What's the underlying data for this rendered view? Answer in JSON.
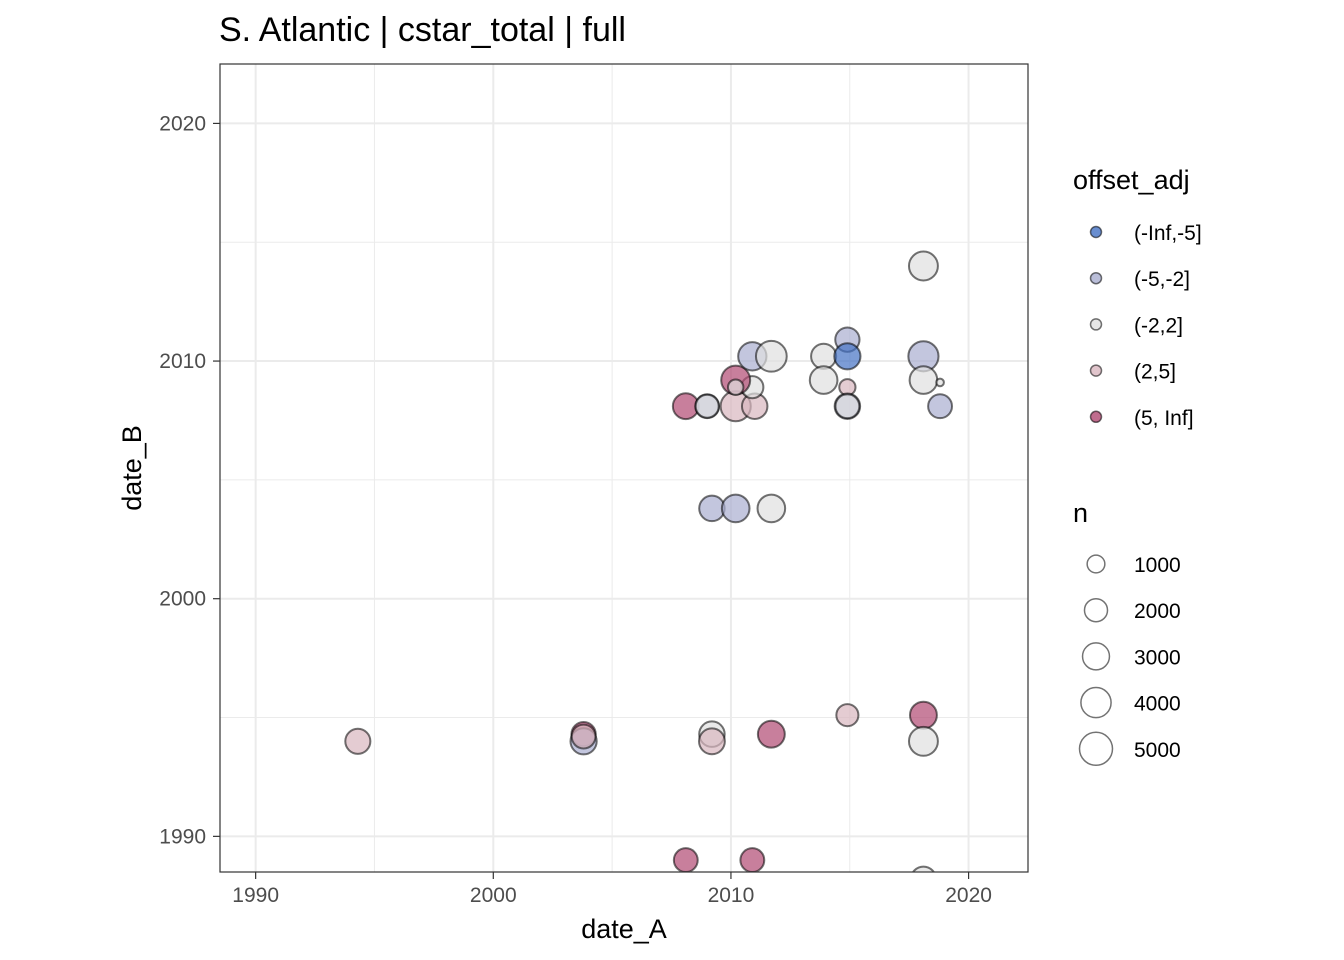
{
  "chart_data": {
    "type": "scatter",
    "title": "S. Atlantic | cstar_total | full",
    "xlabel": "date_A",
    "ylabel": "date_B",
    "xlim": [
      1988.5,
      2022.5
    ],
    "ylim": [
      1988.5,
      2022.5
    ],
    "x_ticks": [
      1990,
      2000,
      2010,
      2020
    ],
    "y_ticks": [
      1990,
      2000,
      2010,
      2020
    ],
    "grid": true,
    "legend_placement": "right",
    "color_legend": {
      "title": "offset_adj",
      "entries": [
        {
          "label": "(-Inf,-5]",
          "color": "#4472c4"
        },
        {
          "label": "(-5,-2]",
          "color": "#a9aed0"
        },
        {
          "label": "(-2,2]",
          "color": "#e0e0e0"
        },
        {
          "label": "(2,5]",
          "color": "#d9b6bf"
        },
        {
          "label": "(5, Inf]",
          "color": "#b04872"
        }
      ]
    },
    "size_legend": {
      "title": "n",
      "entries": [
        {
          "label": "1000",
          "value": 1000
        },
        {
          "label": "2000",
          "value": 2000
        },
        {
          "label": "3000",
          "value": 3000
        },
        {
          "label": "4000",
          "value": 4000
        },
        {
          "label": "5000",
          "value": 5000
        }
      ]
    },
    "points": [
      {
        "x": 1994.3,
        "y": 1994.0,
        "n": 2500,
        "group": "(2,5]"
      },
      {
        "x": 2003.8,
        "y": 1994.3,
        "n": 2300,
        "group": "(5, Inf]"
      },
      {
        "x": 2003.8,
        "y": 1994.0,
        "n": 2800,
        "group": "(-5,-2]"
      },
      {
        "x": 2003.8,
        "y": 1994.2,
        "n": 2200,
        "group": "(2,5]"
      },
      {
        "x": 2009.2,
        "y": 1994.3,
        "n": 2600,
        "group": "(-2,2]"
      },
      {
        "x": 2009.2,
        "y": 1994.0,
        "n": 2700,
        "group": "(2,5]"
      },
      {
        "x": 2011.7,
        "y": 1994.3,
        "n": 3000,
        "group": "(5, Inf]"
      },
      {
        "x": 2014.9,
        "y": 1995.1,
        "n": 1800,
        "group": "(2,5]"
      },
      {
        "x": 2018.1,
        "y": 1995.1,
        "n": 3000,
        "group": "(5, Inf]"
      },
      {
        "x": 2018.1,
        "y": 1994.0,
        "n": 3600,
        "group": "(-2,2]"
      },
      {
        "x": 2008.1,
        "y": 1989.0,
        "n": 2200,
        "group": "(5, Inf]"
      },
      {
        "x": 2010.9,
        "y": 1989.0,
        "n": 2200,
        "group": "(5, Inf]"
      },
      {
        "x": 2018.1,
        "y": 1988.2,
        "n": 2500,
        "group": "(-2,2]"
      },
      {
        "x": 2009.2,
        "y": 2003.8,
        "n": 2600,
        "group": "(-5,-2]"
      },
      {
        "x": 2010.2,
        "y": 2003.8,
        "n": 3200,
        "group": "(-5,-2]"
      },
      {
        "x": 2011.7,
        "y": 2003.8,
        "n": 3200,
        "group": "(-2,2]"
      },
      {
        "x": 2008.1,
        "y": 2008.1,
        "n": 2700,
        "group": "(5, Inf]"
      },
      {
        "x": 2009.0,
        "y": 2008.1,
        "n": 2200,
        "group": "(-5,-2]"
      },
      {
        "x": 2009.0,
        "y": 2008.1,
        "n": 2000,
        "group": "(-2,2]"
      },
      {
        "x": 2010.2,
        "y": 2008.1,
        "n": 4000,
        "group": "(2,5]"
      },
      {
        "x": 2011.0,
        "y": 2008.1,
        "n": 2600,
        "group": "(2,5]"
      },
      {
        "x": 2010.9,
        "y": 2008.9,
        "n": 1800,
        "group": "(-2,2]"
      },
      {
        "x": 2010.2,
        "y": 2009.2,
        "n": 3600,
        "group": "(5, Inf]"
      },
      {
        "x": 2010.2,
        "y": 2008.9,
        "n": 700,
        "group": "(-2,2]"
      },
      {
        "x": 2010.9,
        "y": 2010.2,
        "n": 3400,
        "group": "(-5,-2]"
      },
      {
        "x": 2011.7,
        "y": 2010.2,
        "n": 4200,
        "group": "(-2,2]"
      },
      {
        "x": 2013.9,
        "y": 2010.2,
        "n": 2500,
        "group": "(-2,2]"
      },
      {
        "x": 2013.9,
        "y": 2009.2,
        "n": 3200,
        "group": "(-2,2]"
      },
      {
        "x": 2014.9,
        "y": 2010.9,
        "n": 2300,
        "group": "(-5,-2]"
      },
      {
        "x": 2014.9,
        "y": 2010.2,
        "n": 2800,
        "group": "(-Inf,-5]"
      },
      {
        "x": 2014.9,
        "y": 2008.9,
        "n": 800,
        "group": "(2,5]"
      },
      {
        "x": 2014.9,
        "y": 2008.1,
        "n": 2600,
        "group": "(-5,-2]"
      },
      {
        "x": 2014.9,
        "y": 2008.1,
        "n": 2200,
        "group": "(-2,2]"
      },
      {
        "x": 2018.1,
        "y": 2014.0,
        "n": 3600,
        "group": "(-2,2]"
      },
      {
        "x": 2018.1,
        "y": 2010.2,
        "n": 4000,
        "group": "(-5,-2]"
      },
      {
        "x": 2018.1,
        "y": 2009.2,
        "n": 3200,
        "group": "(-2,2]"
      },
      {
        "x": 2018.8,
        "y": 2009.1,
        "n": 250,
        "group": "(-2,2]"
      },
      {
        "x": 2018.8,
        "y": 2008.1,
        "n": 2200,
        "group": "(-5,-2]"
      }
    ]
  }
}
